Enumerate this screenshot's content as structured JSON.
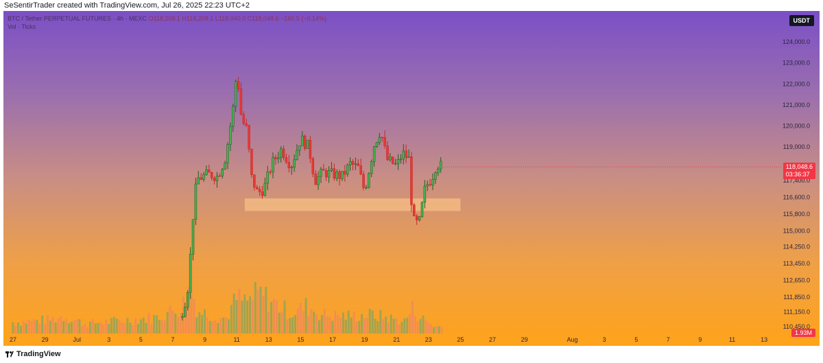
{
  "header": {
    "created_by": "SeSentirTrader created with TradingView.com, Jul 26, 2025 22:23 UTC+2"
  },
  "legend": {
    "symbol": "BTC / Tether PERPETUAL FUTURES · 4h · MEXC",
    "ohlc": "O118,209.1  H118,209.1  L118,040.0  C118,048.6  −160.5 (−0.14%)",
    "volume_label": "Vol · Ticks",
    "volume_value": "1.93M"
  },
  "currency_badge": "USDT",
  "last_price": {
    "price": "118,048.6",
    "countdown": "03:36:37"
  },
  "footer": {
    "brand": "TradingView",
    "logo_icon": "tradingview-logo-icon"
  },
  "colors": {
    "up": "#1b5e20",
    "down": "#c62828",
    "vol_up": "#8fa45a",
    "vol_down": "#f08a5a",
    "zone": "#ffc98a",
    "badge": "#f23645",
    "gradient_top": "#7b4fc6",
    "gradient_bottom": "#ffa31a"
  },
  "chart_data": {
    "type": "candlestick",
    "symbol": "BTC/USDT Perpetual",
    "timeframe": "4h",
    "y_axis_ticks": [
      124000,
      123000,
      122000,
      121000,
      120000,
      119000,
      117400,
      116600,
      115800,
      115000,
      114250,
      113450,
      112650,
      111850,
      111150,
      110450
    ],
    "x_axis_ticks": [
      "27",
      "29",
      "Jul",
      "3",
      "5",
      "7",
      "9",
      "11",
      "13",
      "15",
      "17",
      "19",
      "21",
      "23",
      "25",
      "27",
      "29",
      "Aug",
      "3",
      "5",
      "7",
      "9",
      "11",
      "13"
    ],
    "x_axis_start_date": "2025-06-27",
    "support_zone": {
      "from": "2025-07-11T12:00",
      "to": "2025-07-25",
      "low": 115950,
      "high": 116550
    },
    "candle_keyframes": [
      {
        "day": 10.6,
        "close": 111200
      },
      {
        "day": 10.9,
        "close": 112000
      },
      {
        "day": 11.1,
        "close": 113800
      },
      {
        "day": 11.35,
        "close": 116700
      },
      {
        "day": 11.6,
        "close": 117500
      },
      {
        "day": 12.2,
        "close": 117700
      },
      {
        "day": 12.8,
        "close": 117600
      },
      {
        "day": 13.3,
        "close": 118500
      },
      {
        "day": 13.8,
        "close": 121000
      },
      {
        "day": 14.0,
        "close": 122700
      },
      {
        "day": 14.3,
        "close": 120300
      },
      {
        "day": 14.65,
        "close": 119800
      },
      {
        "day": 14.9,
        "close": 117600
      },
      {
        "day": 15.3,
        "close": 116800
      },
      {
        "day": 15.7,
        "close": 117000
      },
      {
        "day": 16.2,
        "close": 118200
      },
      {
        "day": 16.8,
        "close": 118900
      },
      {
        "day": 17.4,
        "close": 118100
      },
      {
        "day": 18.0,
        "close": 119400
      },
      {
        "day": 18.5,
        "close": 119000
      },
      {
        "day": 18.9,
        "close": 117400
      },
      {
        "day": 19.4,
        "close": 117800
      },
      {
        "day": 20.0,
        "close": 117700
      },
      {
        "day": 20.6,
        "close": 117600
      },
      {
        "day": 21.1,
        "close": 118200
      },
      {
        "day": 21.6,
        "close": 118000
      },
      {
        "day": 22.0,
        "close": 116900
      },
      {
        "day": 22.6,
        "close": 119100
      },
      {
        "day": 23.0,
        "close": 119800
      },
      {
        "day": 23.4,
        "close": 118400
      },
      {
        "day": 24.0,
        "close": 118100
      },
      {
        "day": 24.4,
        "close": 118700
      },
      {
        "day": 24.8,
        "close": 118400
      },
      {
        "day": 25.0,
        "close": 115500
      },
      {
        "day": 25.4,
        "close": 115300
      },
      {
        "day": 25.8,
        "close": 117100
      },
      {
        "day": 26.2,
        "close": 117500
      },
      {
        "day": 26.5,
        "close": 118200
      },
      {
        "day": 26.9,
        "close": 118049
      }
    ],
    "volume_keyframes": [
      {
        "day": 0,
        "vol": 0.9
      },
      {
        "day": 2.3,
        "vol": 1.1
      },
      {
        "day": 3.2,
        "vol": 1.4
      },
      {
        "day": 4.5,
        "vol": 0.8
      },
      {
        "day": 6.5,
        "vol": 1.0
      },
      {
        "day": 9.0,
        "vol": 1.3
      },
      {
        "day": 10.6,
        "vol": 2.2
      },
      {
        "day": 11.1,
        "vol": 3.7
      },
      {
        "day": 11.6,
        "vol": 1.8
      },
      {
        "day": 13.3,
        "vol": 1.2
      },
      {
        "day": 14.0,
        "vol": 2.8
      },
      {
        "day": 14.6,
        "vol": 2.5
      },
      {
        "day": 15.4,
        "vol": 3.2
      },
      {
        "day": 16.2,
        "vol": 2.6
      },
      {
        "day": 17.4,
        "vol": 1.6
      },
      {
        "day": 18.4,
        "vol": 2.2
      },
      {
        "day": 19.4,
        "vol": 1.5
      },
      {
        "day": 21.0,
        "vol": 1.4
      },
      {
        "day": 22.5,
        "vol": 1.5
      },
      {
        "day": 24.5,
        "vol": 1.0
      },
      {
        "day": 25.0,
        "vol": 2.0
      },
      {
        "day": 25.6,
        "vol": 1.2
      },
      {
        "day": 26.4,
        "vol": 0.6
      },
      {
        "day": 26.9,
        "vol": 0.5
      }
    ],
    "volume_axis_max": 4.6
  }
}
